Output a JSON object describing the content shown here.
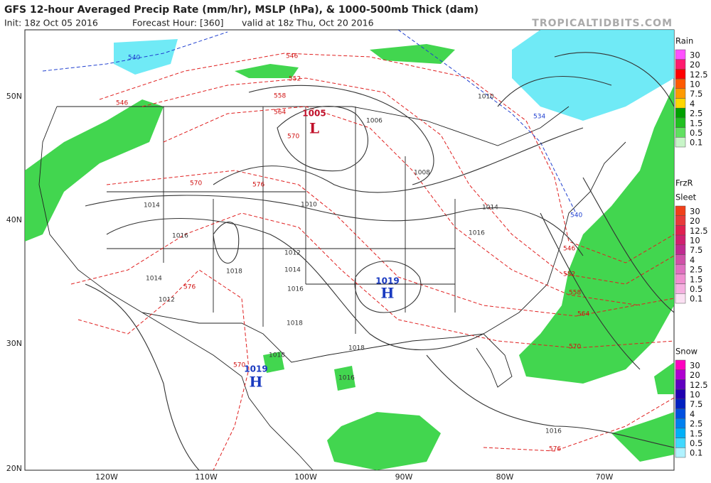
{
  "header": {
    "title": "GFS 12-hour Averaged Precip Rate (mm/hr), MSLP (hPa), & 1000-500mb Thick (dam)",
    "init": "Init: 18z Oct 05 2016",
    "forecast": "Forecast Hour: [360]",
    "valid": "valid at 18z Thu, Oct 20 2016",
    "source": "TROPICALTIDBITS.COM"
  },
  "map": {
    "lat_labels": [
      "50N",
      "40N",
      "30N",
      "20N"
    ],
    "lon_labels": [
      "120W",
      "110W",
      "100W",
      "90W",
      "80W",
      "70W"
    ],
    "centers": [
      {
        "letter": "L",
        "pressure": "1005"
      },
      {
        "letter": "H",
        "pressure": "1019"
      },
      {
        "letter": "H",
        "pressure": "1019"
      }
    ],
    "isobar_labels": [
      "1006",
      "1008",
      "1010",
      "1010",
      "1012",
      "1014",
      "1014",
      "1014",
      "1016",
      "1016",
      "1016",
      "1018",
      "1018",
      "1018",
      "1018",
      "1014",
      "1012",
      "1016",
      "1016"
    ],
    "thickness_labels": [
      "540",
      "546",
      "552",
      "558",
      "564",
      "570",
      "546",
      "570",
      "576",
      "576",
      "570",
      "534",
      "540",
      "546",
      "552",
      "558",
      "564",
      "570",
      "576"
    ]
  },
  "legends": [
    {
      "titles": [
        "Rain"
      ],
      "levels": [
        "30",
        "20",
        "12.5",
        "10",
        "7.5",
        "4",
        "2.5",
        "1.5",
        "0.5",
        "0.1"
      ],
      "colors": [
        "#ff50ff",
        "#ff1a6e",
        "#ff0000",
        "#ff5a00",
        "#ff9a00",
        "#ffd700",
        "#00a000",
        "#20c020",
        "#60e060",
        "#c8f5c8"
      ]
    },
    {
      "titles": [
        "FrzR",
        "Sleet"
      ],
      "levels": [
        "30",
        "20",
        "12.5",
        "10",
        "7.5",
        "4",
        "2.5",
        "1.5",
        "0.5",
        "0.1"
      ],
      "colors": [
        "#f0401a",
        "#e83a3a",
        "#e02050",
        "#d02070",
        "#c02a90",
        "#d050a8",
        "#e070c0",
        "#f090d0",
        "#f5b0e0",
        "#fbe0f3"
      ]
    },
    {
      "titles": [
        "Snow"
      ],
      "levels": [
        "30",
        "20",
        "12.5",
        "10",
        "7.5",
        "4",
        "2.5",
        "1.5",
        "0.5",
        "0.1"
      ],
      "colors": [
        "#ff00c0",
        "#b000d0",
        "#6000c0",
        "#2000b0",
        "#0020c0",
        "#0050e0",
        "#0080f0",
        "#00b0f8",
        "#40d8ff",
        "#b0f2ff"
      ]
    }
  ]
}
